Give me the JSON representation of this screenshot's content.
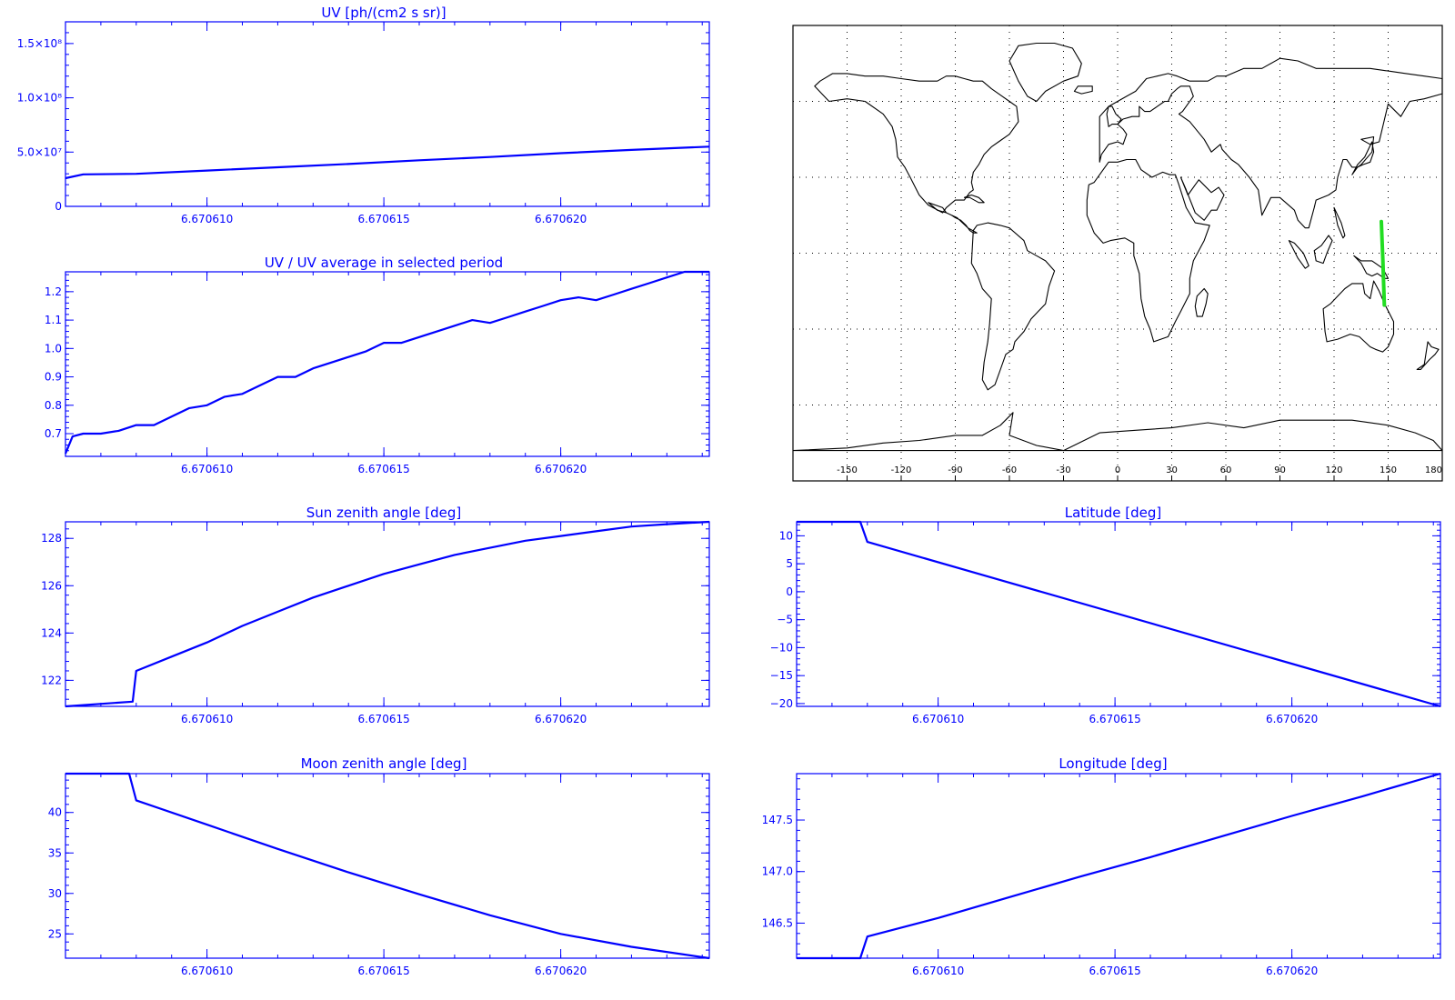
{
  "colors": {
    "axis": "#0000ff",
    "line": "#0000ff",
    "map_outline": "#000000",
    "track": "#22dd22",
    "grid": "#000000"
  },
  "x_tick_labels": [
    "6.670610",
    "6.670615",
    "6.670620"
  ],
  "chart_data": [
    {
      "id": "uv",
      "type": "line",
      "title": "UV [ph/(cm2 s sr)]",
      "xlim": [
        6.670606,
        6.6706242
      ],
      "ylim": [
        0,
        170000000.0
      ],
      "yticks": [
        0,
        50000000.0,
        100000000.0,
        150000000.0
      ],
      "yticklabels": [
        "0",
        "5.0×10⁷",
        "1.0×10⁸",
        "1.5×10⁸"
      ],
      "x": [
        6.670606,
        6.6706065,
        6.670608,
        6.67061,
        6.670612,
        6.670614,
        6.670616,
        6.670618,
        6.67062,
        6.670622,
        6.6706242
      ],
      "y": [
        26000000.0,
        29500000.0,
        30000000.0,
        33000000.0,
        36000000.0,
        39000000.0,
        42500000.0,
        45500000.0,
        49000000.0,
        52000000.0,
        55000000.0
      ]
    },
    {
      "id": "uv-ratio",
      "type": "line",
      "title": "UV / UV average in selected period",
      "xlim": [
        6.670606,
        6.6706242
      ],
      "ylim": [
        0.62,
        1.27
      ],
      "yticks": [
        0.7,
        0.8,
        0.9,
        1.0,
        1.1,
        1.2
      ],
      "yticklabels": [
        "0.7",
        "0.8",
        "0.9",
        "1.0",
        "1.1",
        "1.2"
      ],
      "x": [
        6.670606,
        6.6706062,
        6.6706065,
        6.670607,
        6.6706075,
        6.670608,
        6.6706085,
        6.670609,
        6.6706095,
        6.67061,
        6.6706105,
        6.670611,
        6.6706115,
        6.670612,
        6.6706125,
        6.670613,
        6.6706135,
        6.670614,
        6.6706145,
        6.670615,
        6.6706155,
        6.670616,
        6.6706165,
        6.670617,
        6.6706175,
        6.670618,
        6.6706185,
        6.670619,
        6.6706195,
        6.67062,
        6.6706205,
        6.670621,
        6.6706215,
        6.670622,
        6.6706225,
        6.670623,
        6.6706235,
        6.6706242
      ],
      "y": [
        0.63,
        0.69,
        0.7,
        0.7,
        0.71,
        0.73,
        0.73,
        0.76,
        0.79,
        0.8,
        0.83,
        0.84,
        0.87,
        0.9,
        0.9,
        0.93,
        0.95,
        0.97,
        0.99,
        1.02,
        1.02,
        1.04,
        1.06,
        1.08,
        1.1,
        1.09,
        1.11,
        1.13,
        1.15,
        1.17,
        1.18,
        1.17,
        1.19,
        1.21,
        1.23,
        1.25,
        1.27,
        1.27
      ]
    },
    {
      "id": "sun-zenith",
      "type": "line",
      "title": "Sun zenith angle [deg]",
      "xlim": [
        6.670606,
        6.6706242
      ],
      "ylim": [
        120.9,
        128.7
      ],
      "yticks": [
        122,
        124,
        126,
        128
      ],
      "yticklabels": [
        "122",
        "124",
        "126",
        "128"
      ],
      "x": [
        6.670606,
        6.6706079,
        6.670608,
        6.670609,
        6.67061,
        6.670611,
        6.670612,
        6.670613,
        6.670614,
        6.670615,
        6.670616,
        6.670617,
        6.670618,
        6.670619,
        6.67062,
        6.670621,
        6.670622,
        6.670623,
        6.6706242
      ],
      "y": [
        120.9,
        121.1,
        122.4,
        123.0,
        123.6,
        124.3,
        124.9,
        125.5,
        126.0,
        126.5,
        126.9,
        127.3,
        127.6,
        127.9,
        128.1,
        128.3,
        128.5,
        128.6,
        128.7
      ]
    },
    {
      "id": "latitude",
      "type": "line",
      "title": "Latitude [deg]",
      "xlim": [
        6.670606,
        6.6706242
      ],
      "ylim": [
        -20.5,
        12.5
      ],
      "yticks": [
        -20,
        -15,
        -10,
        -5,
        0,
        5,
        10
      ],
      "yticklabels": [
        "−20",
        "−15",
        "−10",
        "−5",
        "0",
        "5",
        "10"
      ],
      "x": [
        6.670606,
        6.6706078,
        6.670608,
        6.6706242
      ],
      "y": [
        12.5,
        12.5,
        8.9,
        -20.5
      ]
    },
    {
      "id": "moon-zenith",
      "type": "line",
      "title": "Moon zenith angle [deg]",
      "xlim": [
        6.670606,
        6.6706242
      ],
      "ylim": [
        22.0,
        44.8
      ],
      "yticks": [
        25,
        30,
        35,
        40
      ],
      "yticklabels": [
        "25",
        "30",
        "35",
        "40"
      ],
      "x": [
        6.670606,
        6.6706078,
        6.670608,
        6.67061,
        6.670612,
        6.670614,
        6.670616,
        6.670618,
        6.67062,
        6.670622,
        6.6706242
      ],
      "y": [
        44.8,
        44.8,
        41.5,
        38.5,
        35.5,
        32.6,
        29.9,
        27.3,
        25.0,
        23.4,
        22.0
      ]
    },
    {
      "id": "longitude",
      "type": "line",
      "title": "Longitude [deg]",
      "xlim": [
        6.670606,
        6.6706242
      ],
      "ylim": [
        146.16,
        147.95
      ],
      "yticks": [
        146.5,
        147.0,
        147.5
      ],
      "yticklabels": [
        "146.5",
        "147.0",
        "147.5"
      ],
      "x": [
        6.670606,
        6.6706078,
        6.670608,
        6.67061,
        6.670612,
        6.670614,
        6.670616,
        6.670618,
        6.67062,
        6.670622,
        6.6706242
      ],
      "y": [
        146.16,
        146.16,
        146.37,
        146.55,
        146.75,
        146.95,
        147.14,
        147.34,
        147.54,
        147.73,
        147.95
      ]
    }
  ],
  "map": {
    "xticks": [
      -150,
      -120,
      -90,
      -60,
      -30,
      0,
      30,
      60,
      90,
      120,
      150,
      180
    ],
    "xticklabels": [
      "-150",
      "-120",
      "-90",
      "-60",
      "-30",
      "0",
      "30",
      "60",
      "90",
      "120",
      "150",
      "180"
    ],
    "grid_lon": [
      -150,
      -120,
      -90,
      -60,
      -30,
      0,
      30,
      60,
      90,
      120,
      150
    ],
    "grid_lat": [
      -60,
      -30,
      0,
      30,
      60
    ],
    "track": {
      "lon": [
        146.2,
        146.6,
        147.1,
        147.5,
        147.9
      ],
      "lat": [
        12.5,
        5.0,
        -3.0,
        -12.0,
        -20.5
      ]
    },
    "continents": [
      {
        "name": "North America",
        "lon": [
          -168,
          -160,
          -150,
          -140,
          -130,
          -125,
          -123,
          -122,
          -118,
          -115,
          -110,
          -105,
          -97,
          -95,
          -90,
          -85,
          -82,
          -80,
          -81,
          -80,
          -77,
          -74,
          -70,
          -66,
          -60,
          -55,
          -56,
          -60,
          -64,
          -70,
          -75,
          -80,
          -85,
          -90,
          -95,
          -100,
          -110,
          -120,
          -130,
          -140,
          -150,
          -158,
          -165,
          -168
        ],
        "lat": [
          66,
          60,
          61,
          60,
          55,
          50,
          45,
          38,
          34,
          30,
          23,
          19,
          16,
          18,
          21,
          21,
          24,
          25,
          28,
          32,
          35,
          39,
          42,
          44,
          47,
          52,
          58,
          60,
          62,
          65,
          68,
          68,
          69,
          70,
          70,
          68,
          68,
          69,
          70,
          70,
          71,
          71,
          68,
          66
        ]
      },
      {
        "name": "Central America",
        "lon": [
          -105,
          -100,
          -95,
          -92,
          -90,
          -87,
          -84,
          -82,
          -80,
          -78,
          -83,
          -86,
          -89,
          -92,
          -95,
          -97
        ],
        "lat": [
          20,
          17,
          16,
          15,
          14,
          13,
          11,
          9,
          8,
          8,
          10,
          12,
          14,
          15,
          16,
          18
        ]
      },
      {
        "name": "South America",
        "lon": [
          -80,
          -78,
          -72,
          -65,
          -60,
          -52,
          -50,
          -45,
          -40,
          -35,
          -38,
          -40,
          -44,
          -48,
          -52,
          -57,
          -58,
          -62,
          -65,
          -68,
          -72,
          -75,
          -74,
          -72,
          -71,
          -70,
          -75,
          -78,
          -81,
          -80
        ],
        "lat": [
          9,
          11,
          12,
          11,
          10,
          5,
          1,
          -1,
          -3,
          -7,
          -13,
          -20,
          -23,
          -26,
          -31,
          -35,
          -38,
          -40,
          -46,
          -52,
          -54,
          -50,
          -43,
          -35,
          -28,
          -18,
          -14,
          -8,
          -4,
          9
        ]
      },
      {
        "name": "Greenland",
        "lon": [
          -55,
          -45,
          -35,
          -25,
          -20,
          -22,
          -30,
          -40,
          -45,
          -50,
          -55,
          -60,
          -55
        ],
        "lat": [
          82,
          83,
          83,
          81,
          75,
          70,
          68,
          64,
          60,
          62,
          68,
          76,
          82
        ]
      },
      {
        "name": "Europe-Asia",
        "lon": [
          -10,
          -9,
          -5,
          0,
          3,
          5,
          3,
          0,
          3,
          8,
          12,
          12,
          15,
          18,
          22,
          26,
          28,
          30,
          33,
          35,
          37,
          40,
          42,
          36,
          34,
          40,
          48,
          52,
          57,
          58,
          63,
          67,
          73,
          78,
          80,
          85,
          90,
          98,
          100,
          104,
          106,
          109,
          110,
          117,
          121,
          122,
          125,
          127,
          130,
          133,
          135,
          141,
          142,
          135,
          140,
          145,
          150,
          157,
          162,
          170,
          180,
          180,
          170,
          160,
          150,
          140,
          130,
          120,
          110,
          100,
          90,
          80,
          70,
          60,
          55,
          50,
          40,
          33,
          28,
          22,
          16,
          10,
          5,
          0,
          -5,
          -10
        ],
        "lat": [
          36,
          39,
          43,
          44,
          43,
          47,
          49,
          51,
          53,
          54,
          54,
          58,
          56,
          56,
          58,
          60,
          60,
          63,
          65,
          66,
          66,
          66,
          62,
          56,
          55,
          52,
          45,
          40,
          43,
          41,
          37,
          35,
          30,
          25,
          15,
          22,
          22,
          17,
          13,
          10,
          10,
          18,
          21,
          23,
          25,
          30,
          37,
          37,
          34,
          34,
          35,
          40,
          46,
          45,
          43,
          44,
          59,
          54,
          60,
          61,
          63,
          69,
          70,
          71,
          72,
          73,
          73,
          73,
          73,
          76,
          77,
          73,
          73,
          70,
          70,
          68,
          68,
          70,
          71,
          70,
          69,
          64,
          62,
          60,
          58,
          54
        ]
      },
      {
        "name": "Africa",
        "lon": [
          -17,
          -16,
          -13,
          -8,
          -5,
          0,
          5,
          10,
          13,
          19,
          25,
          29,
          32,
          34,
          38,
          43,
          51,
          48,
          42,
          40,
          40,
          35,
          32,
          28,
          20,
          18,
          15,
          13,
          12,
          9,
          9,
          4,
          -4,
          -8,
          -13,
          -17
        ],
        "lat": [
          21,
          27,
          28,
          33,
          36,
          36,
          37,
          37,
          33,
          30,
          32,
          31,
          31,
          27,
          18,
          12,
          11,
          5,
          -3,
          -10,
          -16,
          -23,
          -27,
          -33,
          -35,
          -30,
          -25,
          -18,
          -8,
          -1,
          4,
          6,
          5,
          4,
          8,
          15
        ]
      },
      {
        "name": "Arabia",
        "lon": [
          35,
          38,
          43,
          48,
          52,
          55,
          59,
          58,
          56,
          52,
          45,
          43,
          39,
          35
        ],
        "lat": [
          30,
          25,
          16,
          13,
          17,
          17,
          23,
          24,
          26,
          24,
          29,
          27,
          23,
          30
        ]
      },
      {
        "name": "Australia",
        "lon": [
          114,
          118,
          122,
          126,
          130,
          136,
          137,
          140,
          142,
          145,
          148,
          153,
          153,
          150,
          147,
          143,
          140,
          137,
          134,
          129,
          122,
          116,
          115,
          114
        ],
        "lat": [
          -22,
          -20,
          -17,
          -14,
          -12,
          -12,
          -16,
          -18,
          -11,
          -15,
          -20,
          -27,
          -32,
          -37,
          -39,
          -38,
          -37,
          -35,
          -33,
          -32,
          -34,
          -35,
          -31,
          -22
        ]
      },
      {
        "name": "New Zealand",
        "lon": [
          172,
          174,
          178,
          176,
          173,
          168,
          166,
          170,
          172
        ],
        "lat": [
          -35,
          -37,
          -38,
          -40,
          -42,
          -46,
          -46,
          -44,
          -35
        ]
      },
      {
        "name": "Antarctica",
        "lon": [
          -180,
          -150,
          -130,
          -110,
          -90,
          -75,
          -65,
          -58,
          -60,
          -45,
          -30,
          -10,
          10,
          30,
          50,
          70,
          90,
          110,
          130,
          150,
          165,
          175,
          180
        ],
        "lat": [
          -78,
          -77,
          -75,
          -74,
          -72,
          -72,
          -68,
          -63,
          -72,
          -76,
          -78,
          -71,
          -70,
          -69,
          -67,
          -69,
          -66,
          -66,
          -66,
          -68,
          -71,
          -74,
          -78
        ]
      },
      {
        "name": "Madagascar",
        "lon": [
          44,
          48,
          50,
          49,
          47,
          44,
          43,
          44
        ],
        "lat": [
          -17,
          -14,
          -16,
          -20,
          -25,
          -25,
          -21,
          -17
        ]
      },
      {
        "name": "Borneo",
        "lon": [
          109,
          113,
          117,
          119,
          116,
          114,
          110,
          109
        ],
        "lat": [
          1,
          3,
          7,
          5,
          0,
          -4,
          -3,
          1
        ]
      },
      {
        "name": "Sumatra",
        "lon": [
          95,
          98,
          103,
          106,
          104,
          100,
          95
        ],
        "lat": [
          5,
          4,
          0,
          -5,
          -6,
          -2,
          5
        ]
      },
      {
        "name": "New Guinea",
        "lon": [
          131,
          135,
          141,
          147,
          150,
          148,
          144,
          141,
          138,
          135,
          131
        ],
        "lat": [
          -1,
          -3,
          -3,
          -6,
          -10,
          -10,
          -8,
          -9,
          -8,
          -4,
          -1
        ]
      },
      {
        "name": "Japan",
        "lon": [
          130,
          133,
          136,
          140,
          142,
          141,
          137,
          133,
          130
        ],
        "lat": [
          31,
          34,
          35,
          36,
          40,
          44,
          38,
          35,
          31
        ]
      },
      {
        "name": "British Isles",
        "lon": [
          -5,
          -3,
          0,
          2,
          -1,
          -3,
          -5,
          -6,
          -5
        ],
        "lat": [
          50,
          51,
          51,
          53,
          55,
          58,
          58,
          55,
          50
        ]
      },
      {
        "name": "Iceland",
        "lon": [
          -24,
          -20,
          -14,
          -14,
          -18,
          -22,
          -24
        ],
        "lat": [
          64,
          63,
          64,
          66,
          66,
          66,
          64
        ]
      },
      {
        "name": "Cuba",
        "lon": [
          -85,
          -81,
          -77,
          -74,
          -77,
          -82,
          -85
        ],
        "lat": [
          22,
          23,
          22,
          20,
          20,
          22,
          22
        ]
      },
      {
        "name": "Philippines",
        "lon": [
          120,
          122,
          124,
          126,
          125,
          122,
          120
        ],
        "lat": [
          18,
          15,
          12,
          7,
          6,
          11,
          18
        ]
      }
    ]
  }
}
